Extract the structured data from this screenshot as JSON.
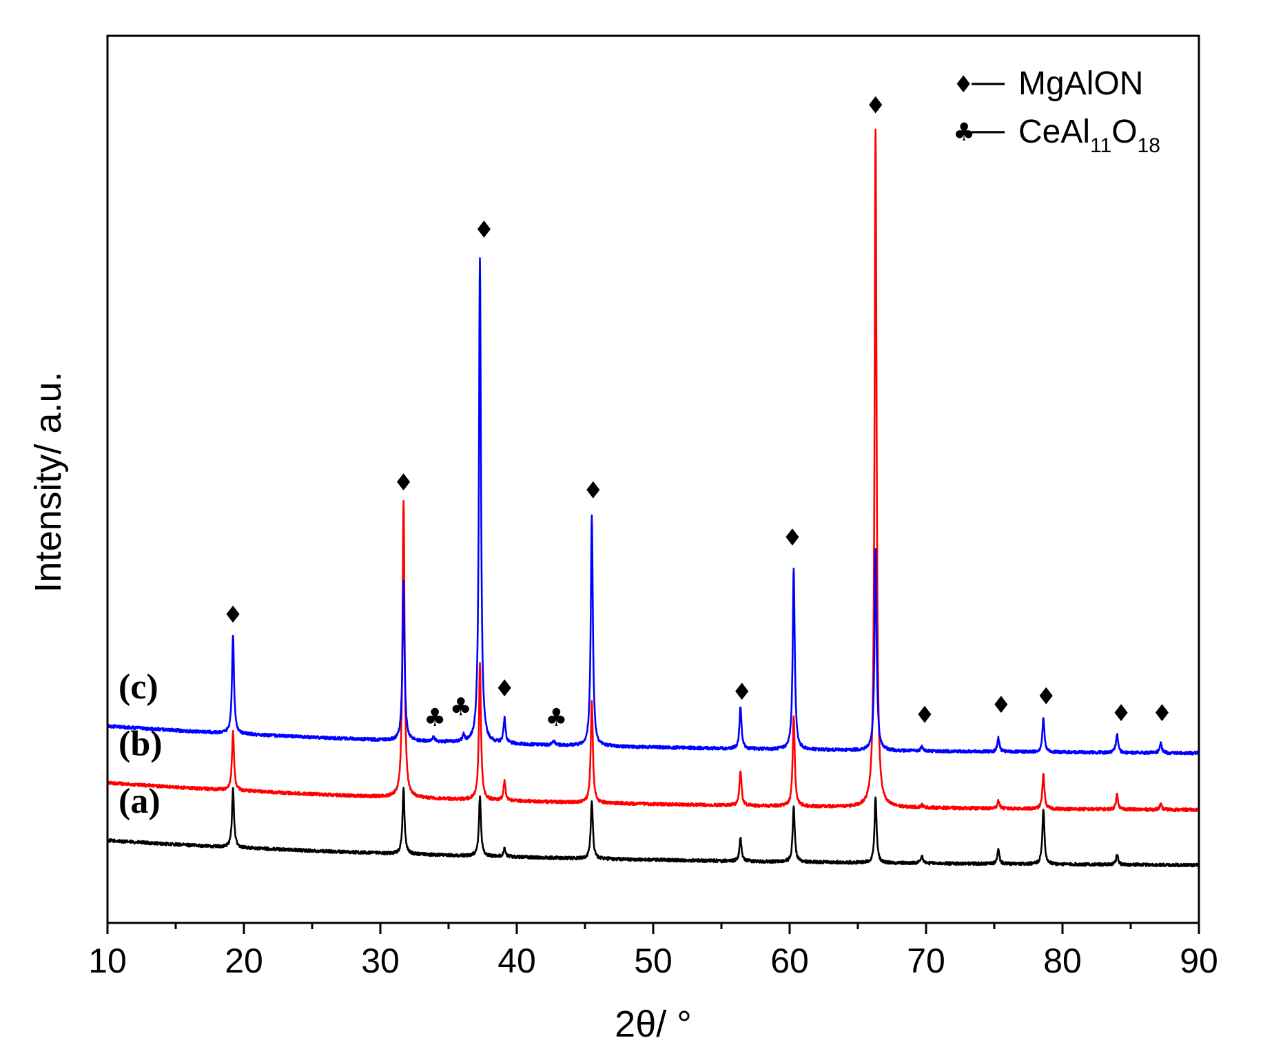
{
  "chart_data": {
    "type": "line",
    "xlabel": "2θ/ °",
    "ylabel": "Intensity/ a.u.",
    "xlim": [
      10,
      90
    ],
    "ylim": [
      0,
      100
    ],
    "xticks": [
      10,
      20,
      30,
      40,
      50,
      60,
      70,
      80,
      90
    ],
    "xtick_labels": [
      "10",
      "20",
      "30",
      "40",
      "50",
      "60",
      "70",
      "80",
      "90"
    ],
    "legend": {
      "position": "top-right",
      "entries": [
        {
          "symbol": "♦",
          "dash": "—",
          "label": "MgAlON"
        },
        {
          "symbol": "♣",
          "dash": "—",
          "label_main": "CeAl",
          "sub1": "11",
          "label_o": "O",
          "sub2": "18"
        }
      ]
    },
    "series": [
      {
        "name": "(a)",
        "color": "#000000",
        "baseline_start": 9.3,
        "baseline_end": 6.3,
        "peaks": [
          [
            19.2,
            6.6
          ],
          [
            31.7,
            7.4
          ],
          [
            37.3,
            6.8
          ],
          [
            39.1,
            1.0
          ],
          [
            45.5,
            6.5
          ],
          [
            56.4,
            2.6
          ],
          [
            60.3,
            6.3
          ],
          [
            66.3,
            7.4
          ],
          [
            69.7,
            0.8
          ],
          [
            75.3,
            1.6
          ],
          [
            78.6,
            6.3
          ],
          [
            84.0,
            1.1
          ]
        ]
      },
      {
        "name": "(b)",
        "color": "#ff0000",
        "baseline_start": 15.8,
        "baseline_end": 12.5,
        "peaks": [
          [
            19.2,
            6.6
          ],
          [
            31.7,
            33.6
          ],
          [
            37.3,
            15.3
          ],
          [
            39.1,
            2.2
          ],
          [
            45.5,
            11.4
          ],
          [
            56.4,
            4.0
          ],
          [
            60.3,
            10.2
          ],
          [
            66.3,
            76.5
          ],
          [
            69.7,
            0.3
          ],
          [
            75.3,
            0.9
          ],
          [
            78.6,
            3.9
          ],
          [
            84.0,
            1.7
          ],
          [
            87.2,
            0.6
          ]
        ]
      },
      {
        "name": "(c)",
        "color": "#0000ff",
        "baseline_start": 22.2,
        "baseline_end": 18.9,
        "peaks": [
          [
            19.2,
            11.0
          ],
          [
            31.7,
            17.9
          ],
          [
            33.9,
            0.6
          ],
          [
            36.1,
            0.7
          ],
          [
            37.3,
            54.8
          ],
          [
            39.1,
            2.8
          ],
          [
            42.7,
            0.5
          ],
          [
            45.5,
            25.9
          ],
          [
            56.4,
            4.7
          ],
          [
            60.3,
            20.5
          ],
          [
            66.3,
            22.8
          ],
          [
            69.7,
            0.6
          ],
          [
            75.3,
            1.6
          ],
          [
            78.6,
            3.8
          ],
          [
            84.0,
            2.2
          ],
          [
            87.2,
            1.1
          ]
        ]
      }
    ],
    "annotations": [
      {
        "symbol": "♦",
        "x": 19.2,
        "y": 34.6
      },
      {
        "symbol": "♦",
        "x": 31.7,
        "y": 49.5
      },
      {
        "symbol": "♦",
        "x": 37.6,
        "y": 78.0
      },
      {
        "symbol": "♦",
        "x": 45.6,
        "y": 48.6
      },
      {
        "symbol": "♦",
        "x": 60.2,
        "y": 43.3
      },
      {
        "symbol": "♦",
        "x": 66.3,
        "y": 92.0
      },
      {
        "symbol": "♦",
        "x": 39.1,
        "y": 26.3
      },
      {
        "symbol": "♦",
        "x": 56.5,
        "y": 25.9
      },
      {
        "symbol": "♦",
        "x": 69.9,
        "y": 23.3
      },
      {
        "symbol": "♦",
        "x": 75.5,
        "y": 24.4
      },
      {
        "symbol": "♦",
        "x": 78.8,
        "y": 25.4
      },
      {
        "symbol": "♦",
        "x": 84.3,
        "y": 23.5
      },
      {
        "symbol": "♦",
        "x": 87.3,
        "y": 23.5
      },
      {
        "symbol": "♣",
        "x": 34.0,
        "y": 23.0
      },
      {
        "symbol": "♣",
        "x": 35.9,
        "y": 24.2
      },
      {
        "symbol": "♣",
        "x": 42.9,
        "y": 23.0
      }
    ]
  }
}
